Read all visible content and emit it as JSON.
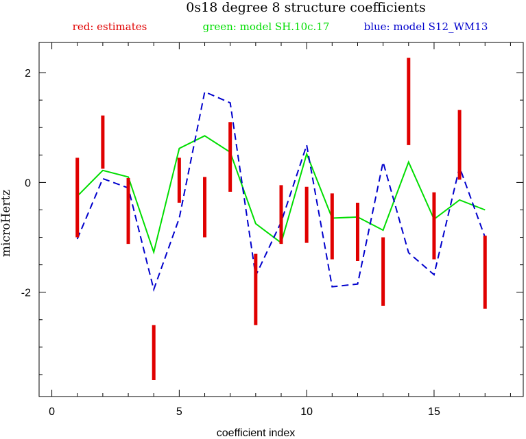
{
  "chart_data": {
    "type": "line",
    "title": "0s18 degree 8 structure coefficients",
    "legend": [
      {
        "label": "red: estimates",
        "color": "#e00000"
      },
      {
        "label": "green: model SH.10c.17",
        "color": "#00dd00"
      },
      {
        "label": "blue: model S12_WM13",
        "color": "#0000cc"
      }
    ],
    "xlabel": "coefficient index",
    "ylabel": "microHertz",
    "xlim": [
      -0.5,
      18.5
    ],
    "ylim": [
      -3.9,
      2.55
    ],
    "xticks_major": [
      0,
      5,
      10,
      15
    ],
    "xticks_minor": [
      1,
      2,
      3,
      4,
      6,
      7,
      8,
      9,
      11,
      12,
      13,
      14,
      16,
      17,
      18
    ],
    "yticks_major": [
      -2,
      0,
      2
    ],
    "yticks_minor": [
      -3.5,
      -3,
      -2.5,
      -1.5,
      -1,
      -0.5,
      0.5,
      1,
      1.5
    ],
    "grid": false,
    "legend_position": "top",
    "estimates": {
      "name": "red: estimates",
      "color": "#e00000",
      "x": [
        1,
        2,
        3,
        4,
        5,
        6,
        7,
        8,
        9,
        10,
        11,
        12,
        13,
        14,
        15,
        16,
        17
      ],
      "low": [
        -1.0,
        0.25,
        -1.12,
        -3.6,
        -0.37,
        -1.0,
        -0.17,
        -2.6,
        -1.12,
        -1.1,
        -1.4,
        -1.43,
        -2.25,
        0.68,
        -1.4,
        0.05,
        -2.3
      ],
      "high": [
        0.45,
        1.22,
        0.08,
        -2.6,
        0.45,
        0.1,
        1.1,
        -1.3,
        -0.05,
        -0.08,
        -0.2,
        -0.37,
        -1.0,
        2.27,
        -0.18,
        1.32,
        -0.97
      ]
    },
    "series": [
      {
        "name": "green: model SH.10c.17",
        "color": "#00dd00",
        "style": "solid",
        "x": [
          1,
          2,
          3,
          4,
          5,
          6,
          7,
          8,
          9,
          10,
          11,
          12,
          13,
          14,
          15,
          16,
          17
        ],
        "values": [
          -0.25,
          0.22,
          0.1,
          -1.27,
          0.62,
          0.85,
          0.55,
          -0.75,
          -1.1,
          0.52,
          -0.65,
          -0.63,
          -0.87,
          0.37,
          -0.67,
          -0.32,
          -0.5
        ]
      },
      {
        "name": "blue: model S12_WM13",
        "color": "#0000cc",
        "style": "dashed",
        "x": [
          1,
          2,
          3,
          4,
          5,
          6,
          7,
          8,
          9,
          10,
          11,
          12,
          13,
          14,
          15,
          16,
          17
        ],
        "values": [
          -1.03,
          0.07,
          -0.1,
          -1.95,
          -0.65,
          1.65,
          1.45,
          -1.7,
          -0.72,
          0.68,
          -1.9,
          -1.85,
          0.37,
          -1.28,
          -1.68,
          0.28,
          -1.0
        ]
      }
    ]
  }
}
